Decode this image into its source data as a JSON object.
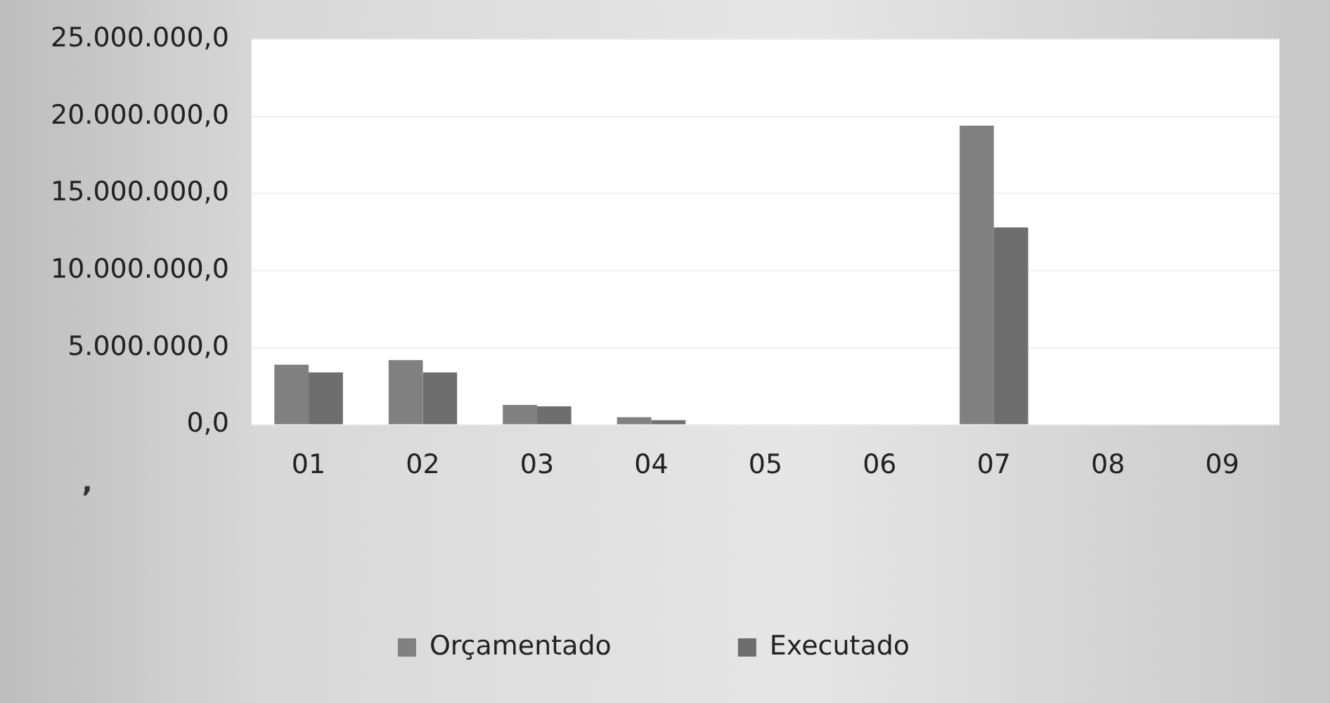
{
  "chart_data": {
    "type": "bar",
    "categories": [
      "01",
      "02",
      "03",
      "04",
      "05",
      "06",
      "07",
      "08",
      "09"
    ],
    "series": [
      {
        "name": "Orçamentado",
        "color": "#808080",
        "values": [
          3900000,
          4200000,
          1300000,
          500000,
          0,
          0,
          19400000,
          0,
          0
        ]
      },
      {
        "name": "Executado",
        "color": "#6e6e6e",
        "values": [
          3400000,
          3400000,
          1200000,
          300000,
          0,
          0,
          12800000,
          0,
          0
        ]
      }
    ],
    "ylim": [
      0,
      25000000
    ],
    "yticks": [
      {
        "value": 0,
        "label": "0,0"
      },
      {
        "value": 5000000,
        "label": "5.000.000,0"
      },
      {
        "value": 10000000,
        "label": "10.000.000,0"
      },
      {
        "value": 15000000,
        "label": "15.000.000,0"
      },
      {
        "value": 20000000,
        "label": "20.000.000,0"
      },
      {
        "value": 25000000,
        "label": "25.000.000,0"
      }
    ],
    "grid": "y",
    "legend": "bottom",
    "annotations": [
      ","
    ]
  }
}
